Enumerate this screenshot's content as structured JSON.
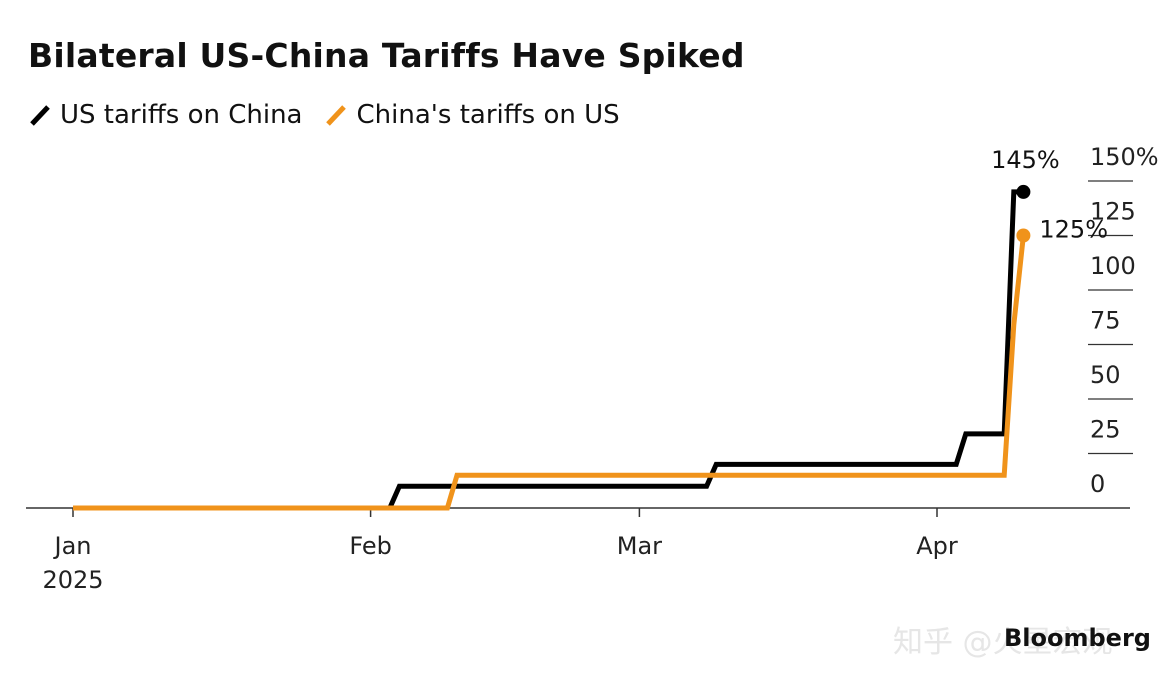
{
  "chart_data": {
    "type": "line",
    "title": "Bilateral US-China Tariffs Have Spiked",
    "x_start": "2025-01-01",
    "xlim": [
      "2025-01-01",
      "2025-04-20"
    ],
    "ylim": [
      0,
      150
    ],
    "y_ticks": [
      0,
      25,
      50,
      75,
      100,
      125,
      150
    ],
    "y_tick_labels": [
      "0",
      "25",
      "50",
      "75",
      "100",
      "125",
      "150%"
    ],
    "x_ticks": [
      {
        "date": "2025-01-01",
        "label": "Jan",
        "sublabel": "2025"
      },
      {
        "date": "2025-02-01",
        "label": "Feb",
        "sublabel": ""
      },
      {
        "date": "2025-03-01",
        "label": "Mar",
        "sublabel": ""
      },
      {
        "date": "2025-04-01",
        "label": "Apr",
        "sublabel": ""
      }
    ],
    "y_axis_position": "right",
    "grid": false,
    "legend_position": "top-left",
    "series": [
      {
        "name": "US tariffs on China",
        "color": "#000000",
        "end_label": "145%",
        "points": [
          [
            "2025-01-01",
            0
          ],
          [
            "2025-02-03",
            0
          ],
          [
            "2025-02-04",
            10
          ],
          [
            "2025-03-08",
            10
          ],
          [
            "2025-03-09",
            20
          ],
          [
            "2025-04-03",
            20
          ],
          [
            "2025-04-04",
            34
          ],
          [
            "2025-04-08",
            34
          ],
          [
            "2025-04-09",
            145
          ],
          [
            "2025-04-10",
            145
          ]
        ]
      },
      {
        "name": "China's tariffs on US",
        "color": "#f0931b",
        "end_label": "125%",
        "points": [
          [
            "2025-01-01",
            0
          ],
          [
            "2025-02-09",
            0
          ],
          [
            "2025-02-10",
            15
          ],
          [
            "2025-03-09",
            15
          ],
          [
            "2025-03-10",
            15
          ],
          [
            "2025-04-08",
            15
          ],
          [
            "2025-04-09",
            84
          ],
          [
            "2025-04-10",
            125
          ]
        ]
      }
    ]
  },
  "source": "Bloomberg",
  "watermark": "知乎 @火星宏观"
}
